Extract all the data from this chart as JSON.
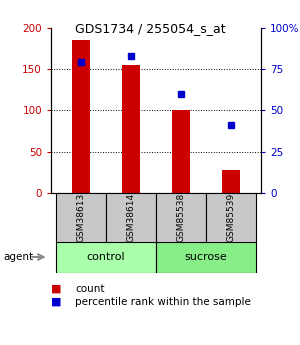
{
  "title": "GDS1734 / 255054_s_at",
  "samples": [
    "GSM38613",
    "GSM38614",
    "GSM85538",
    "GSM85539"
  ],
  "bar_values": [
    185,
    155,
    100,
    28
  ],
  "dot_pct": [
    79,
    83,
    60,
    41
  ],
  "bar_color": "#cc0000",
  "dot_color": "#0000cc",
  "left_ylim": [
    0,
    200
  ],
  "right_ylim": [
    0,
    100
  ],
  "left_yticks": [
    0,
    50,
    100,
    150,
    200
  ],
  "right_yticks": [
    0,
    25,
    50,
    75,
    100
  ],
  "right_yticklabels": [
    "0",
    "25",
    "50",
    "75",
    "100%"
  ],
  "bar_width": 0.35,
  "sample_bg": "#c8c8c8",
  "control_color": "#aaffaa",
  "sucrose_color": "#88ee88",
  "legend_count_label": "count",
  "legend_pct_label": "percentile rank within the sample"
}
